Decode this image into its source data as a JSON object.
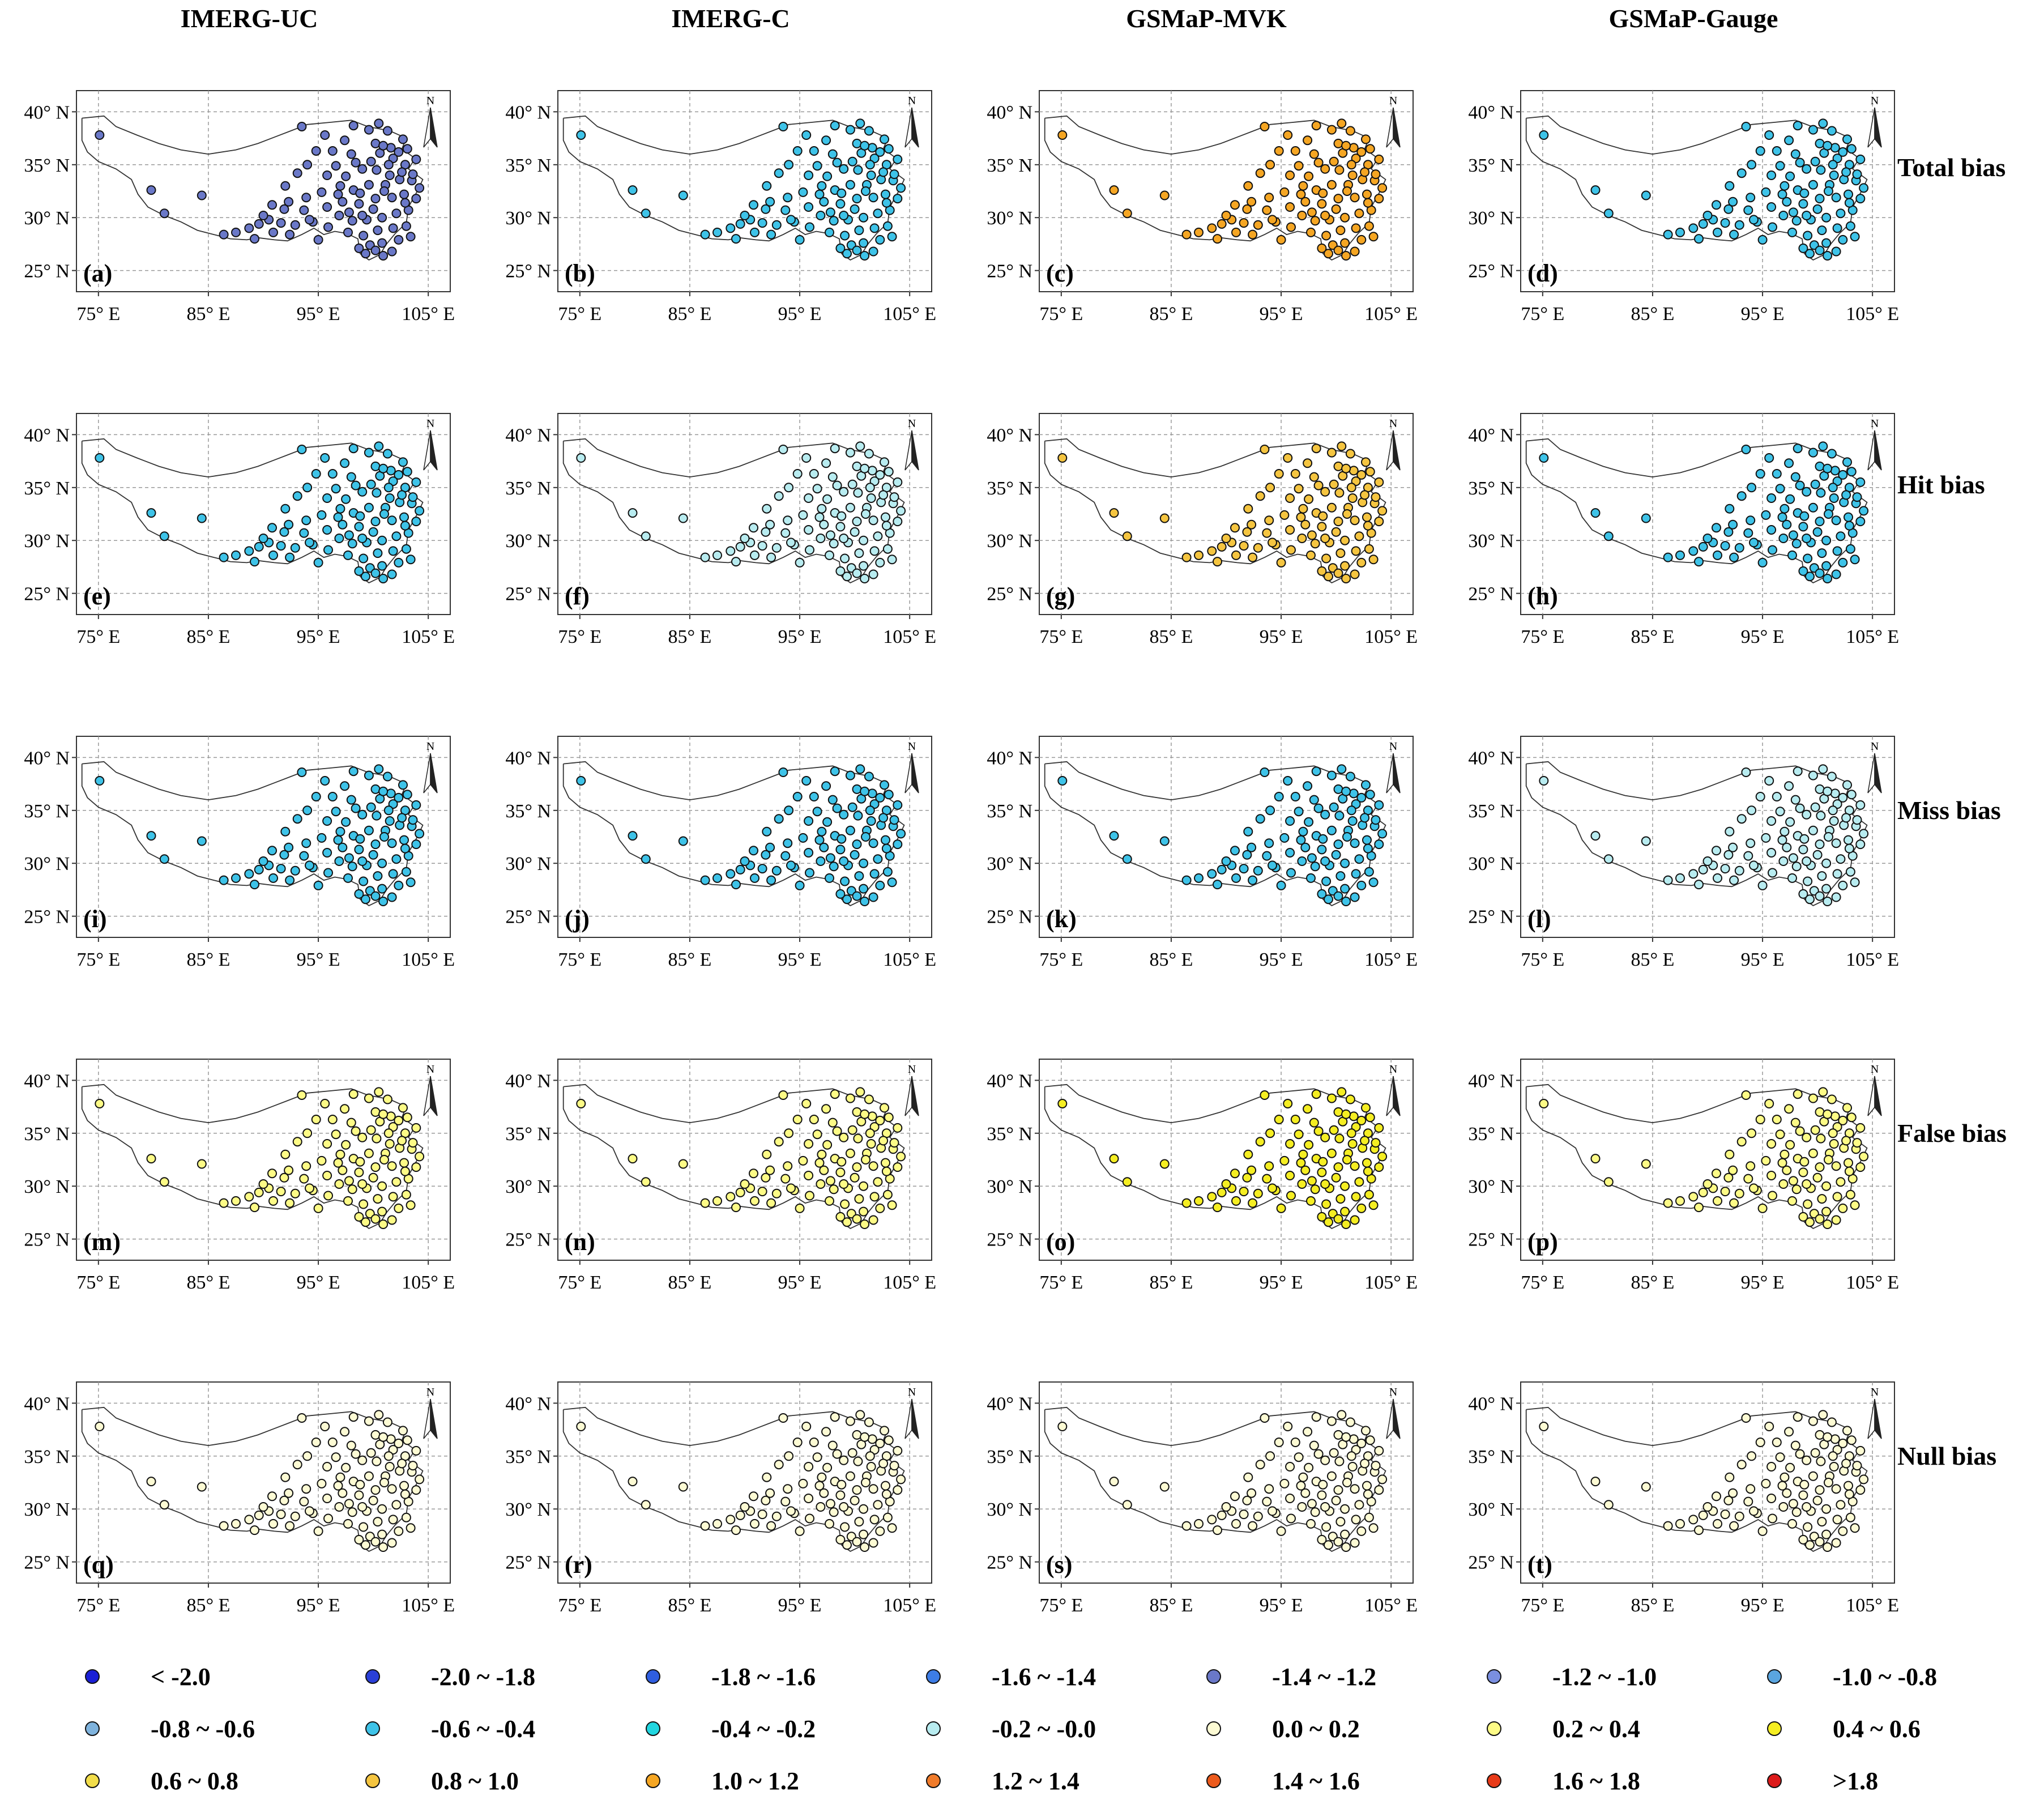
{
  "columns": [
    {
      "key": "uc",
      "title": "IMERG-UC"
    },
    {
      "key": "c",
      "title": "IMERG-C"
    },
    {
      "key": "mvk",
      "title": "GSMaP-MVK"
    },
    {
      "key": "gauge",
      "title": "GSMaP-Gauge"
    }
  ],
  "rows": [
    {
      "key": "total",
      "label": "Total bias"
    },
    {
      "key": "hit",
      "label": "Hit bias"
    },
    {
      "key": "miss",
      "label": "Miss bias"
    },
    {
      "key": "false",
      "label": "False bias"
    },
    {
      "key": "null",
      "label": "Null bias"
    }
  ],
  "panel_letters": [
    "(a)",
    "(b)",
    "(c)",
    "(d)",
    "(e)",
    "(f)",
    "(g)",
    "(h)",
    "(i)",
    "(j)",
    "(k)",
    "(l)",
    "(m)",
    "(n)",
    "(o)",
    "(p)",
    "(q)",
    "(r)",
    "(s)",
    "(t)"
  ],
  "axes": {
    "lat_ticks": [
      {
        "value": 40,
        "label": "40° N"
      },
      {
        "value": 35,
        "label": "35° N"
      },
      {
        "value": 30,
        "label": "30° N"
      },
      {
        "value": 25,
        "label": "25° N"
      }
    ],
    "lon_ticks": [
      {
        "value": 75,
        "label": "75° E"
      },
      {
        "value": 85,
        "label": "85° E"
      },
      {
        "value": 95,
        "label": "95° E"
      },
      {
        "value": 105,
        "label": "105° E"
      }
    ],
    "lon_range": [
      73,
      107
    ],
    "lat_range": [
      23,
      42
    ],
    "north_arrow_label": "N"
  },
  "legend": [
    {
      "label": "< -2.0",
      "color": "#1a1fd6"
    },
    {
      "label": "-2.0 ~ -1.8",
      "color": "#2a3fd8"
    },
    {
      "label": "-1.8 ~ -1.6",
      "color": "#2f5ee0"
    },
    {
      "label": "-1.6 ~ -1.4",
      "color": "#3d7de6"
    },
    {
      "label": "-1.4 ~ -1.2",
      "color": "#6a78c8"
    },
    {
      "label": "-1.2 ~ -1.0",
      "color": "#7a8fe0"
    },
    {
      "label": "-1.0 ~ -0.8",
      "color": "#5aa5e0"
    },
    {
      "label": "-0.8 ~ -0.6",
      "color": "#7fb3dd"
    },
    {
      "label": "-0.6 ~ -0.4",
      "color": "#3ec3e8"
    },
    {
      "label": "-0.4 ~ -0.2",
      "color": "#21d6e0"
    },
    {
      "label": "-0.2 ~ -0.0",
      "color": "#b8ecf0"
    },
    {
      "label": "0.0 ~ 0.2",
      "color": "#fdfbd4"
    },
    {
      "label": "0.2 ~ 0.4",
      "color": "#fdfb86"
    },
    {
      "label": "0.4 ~ 0.6",
      "color": "#f5ee22"
    },
    {
      "label": "0.6 ~ 0.8",
      "color": "#f2dd4a"
    },
    {
      "label": "0.8 ~ 1.0",
      "color": "#f5c540"
    },
    {
      "label": "1.0 ~ 1.2",
      "color": "#f5a623"
    },
    {
      "label": "1.2 ~ 1.4",
      "color": "#f07b2a"
    },
    {
      "label": "1.4 ~ 1.6",
      "color": "#ec5a1c"
    },
    {
      "label": "1.6 ~ 1.8",
      "color": "#e83a18"
    },
    {
      "label": ">1.8",
      "color": "#dc1a1a"
    }
  ],
  "boundary": [
    [
      73.5,
      39.4
    ],
    [
      75.5,
      39.6
    ],
    [
      76.6,
      38.6
    ],
    [
      78.5,
      37.8
    ],
    [
      80.5,
      37.0
    ],
    [
      82.5,
      36.4
    ],
    [
      85.0,
      36.0
    ],
    [
      87.5,
      36.4
    ],
    [
      89.5,
      37.0
    ],
    [
      91.0,
      37.6
    ],
    [
      92.5,
      38.2
    ],
    [
      94.0,
      38.8
    ],
    [
      96.0,
      39.0
    ],
    [
      98.0,
      39.2
    ],
    [
      99.5,
      38.6
    ],
    [
      101.5,
      38.2
    ],
    [
      103.0,
      37.5
    ],
    [
      102.6,
      36.5
    ],
    [
      103.8,
      35.6
    ],
    [
      103.2,
      34.6
    ],
    [
      104.5,
      33.6
    ],
    [
      104.0,
      32.5
    ],
    [
      103.2,
      31.0
    ],
    [
      103.0,
      29.5
    ],
    [
      102.0,
      28.5
    ],
    [
      101.2,
      27.5
    ],
    [
      100.6,
      26.5
    ],
    [
      99.6,
      26.0
    ],
    [
      98.8,
      26.6
    ],
    [
      98.6,
      28.0
    ],
    [
      97.6,
      28.5
    ],
    [
      96.5,
      28.7
    ],
    [
      95.5,
      28.4
    ],
    [
      94.6,
      29.0
    ],
    [
      93.5,
      28.4
    ],
    [
      92.2,
      27.8
    ],
    [
      91.0,
      27.9
    ],
    [
      89.5,
      28.1
    ],
    [
      88.5,
      27.9
    ],
    [
      87.0,
      28.0
    ],
    [
      85.5,
      28.4
    ],
    [
      84.0,
      28.8
    ],
    [
      82.5,
      29.6
    ],
    [
      81.0,
      30.2
    ],
    [
      79.5,
      31.0
    ],
    [
      78.6,
      32.2
    ],
    [
      78.0,
      33.6
    ],
    [
      76.6,
      34.6
    ],
    [
      75.0,
      35.3
    ],
    [
      74.0,
      36.2
    ],
    [
      73.5,
      37.3
    ],
    [
      73.5,
      39.4
    ]
  ],
  "stations": [
    [
      75.1,
      37.8
    ],
    [
      79.8,
      32.6
    ],
    [
      81.0,
      30.4
    ],
    [
      84.4,
      32.1
    ],
    [
      93.5,
      38.6
    ],
    [
      95.6,
      37.8
    ],
    [
      97.4,
      37.3
    ],
    [
      98.2,
      38.7
    ],
    [
      99.6,
      38.3
    ],
    [
      100.5,
      38.9
    ],
    [
      101.3,
      38.2
    ],
    [
      102.7,
      37.4
    ],
    [
      100.2,
      37.0
    ],
    [
      101.6,
      36.6
    ],
    [
      102.3,
      36.2
    ],
    [
      103.1,
      36.5
    ],
    [
      100.6,
      36.1
    ],
    [
      101.8,
      35.6
    ],
    [
      102.9,
      35.0
    ],
    [
      103.9,
      35.5
    ],
    [
      99.8,
      35.3
    ],
    [
      98.4,
      35.2
    ],
    [
      96.6,
      34.9
    ],
    [
      94.0,
      35.0
    ],
    [
      93.1,
      34.2
    ],
    [
      95.8,
      34.0
    ],
    [
      97.5,
      33.9
    ],
    [
      99.0,
      34.6
    ],
    [
      100.3,
      34.5
    ],
    [
      101.5,
      34.0
    ],
    [
      102.4,
      33.6
    ],
    [
      103.5,
      33.5
    ],
    [
      104.2,
      32.8
    ],
    [
      101.1,
      33.1
    ],
    [
      99.6,
      33.1
    ],
    [
      98.2,
      32.6
    ],
    [
      96.8,
      32.2
    ],
    [
      95.3,
      32.4
    ],
    [
      93.9,
      31.9
    ],
    [
      92.3,
      31.5
    ],
    [
      90.8,
      31.2
    ],
    [
      91.9,
      30.8
    ],
    [
      93.7,
      30.7
    ],
    [
      95.8,
      31.0
    ],
    [
      97.2,
      31.5
    ],
    [
      98.7,
      31.3
    ],
    [
      100.2,
      31.8
    ],
    [
      101.7,
      31.9
    ],
    [
      102.8,
      32.2
    ],
    [
      103.9,
      31.8
    ],
    [
      103.2,
      30.7
    ],
    [
      102.1,
      30.4
    ],
    [
      100.8,
      30.0
    ],
    [
      99.4,
      29.8
    ],
    [
      98.1,
      29.7
    ],
    [
      96.9,
      30.2
    ],
    [
      94.5,
      29.6
    ],
    [
      92.9,
      29.3
    ],
    [
      91.6,
      29.5
    ],
    [
      90.5,
      29.8
    ],
    [
      89.6,
      29.4
    ],
    [
      88.7,
      29.0
    ],
    [
      87.5,
      28.6
    ],
    [
      86.4,
      28.4
    ],
    [
      89.2,
      28.0
    ],
    [
      90.9,
      28.6
    ],
    [
      92.4,
      28.4
    ],
    [
      94.2,
      29.8
    ],
    [
      95.9,
      29.1
    ],
    [
      97.7,
      28.6
    ],
    [
      99.1,
      28.3
    ],
    [
      100.4,
      28.8
    ],
    [
      101.8,
      29.0
    ],
    [
      103.0,
      29.2
    ],
    [
      99.7,
      27.4
    ],
    [
      100.8,
      27.6
    ],
    [
      102.3,
      27.9
    ],
    [
      99.3,
      26.6
    ],
    [
      100.2,
      26.9
    ],
    [
      100.9,
      26.4
    ],
    [
      101.7,
      26.8
    ],
    [
      98.7,
      27.1
    ],
    [
      97.8,
      30.5
    ],
    [
      98.8,
      32.3
    ],
    [
      101.4,
      35.0
    ],
    [
      102.6,
      34.3
    ],
    [
      103.6,
      34.1
    ],
    [
      100.9,
      36.8
    ],
    [
      96.3,
      36.3
    ],
    [
      98.0,
      36.0
    ],
    [
      94.8,
      36.3
    ],
    [
      92.0,
      33.0
    ],
    [
      90.0,
      30.2
    ],
    [
      95.0,
      27.9
    ],
    [
      102.9,
      31.4
    ],
    [
      100.0,
      30.8
    ],
    [
      101.0,
      32.5
    ],
    [
      97.0,
      33.0
    ],
    [
      99.0,
      30.2
    ],
    [
      103.4,
      28.2
    ]
  ],
  "color_groups": {
    "uc_total": "#6a78c8",
    "c_total": "#3ec3e8",
    "mvk_total": "#f5a623",
    "gauge_total": "#3ec3e8",
    "uc_hit": "#3ec3e8",
    "c_hit": "#b8ecf0",
    "mvk_hit": "#f5c540",
    "gauge_hit": "#3ec3e8",
    "uc_miss": "#3ec3e8",
    "c_miss": "#3ec3e8",
    "mvk_miss": "#3ec3e8",
    "gauge_miss": "#b8ecf0",
    "uc_false": "#fdfb86",
    "c_false": "#fdfb86",
    "mvk_false": "#f5ee22",
    "gauge_false": "#fdfb86",
    "uc_null": "#fdfbd4",
    "c_null": "#fdfbd4",
    "mvk_null": "#fdfbd4",
    "gauge_null": "#fdfbd4"
  }
}
